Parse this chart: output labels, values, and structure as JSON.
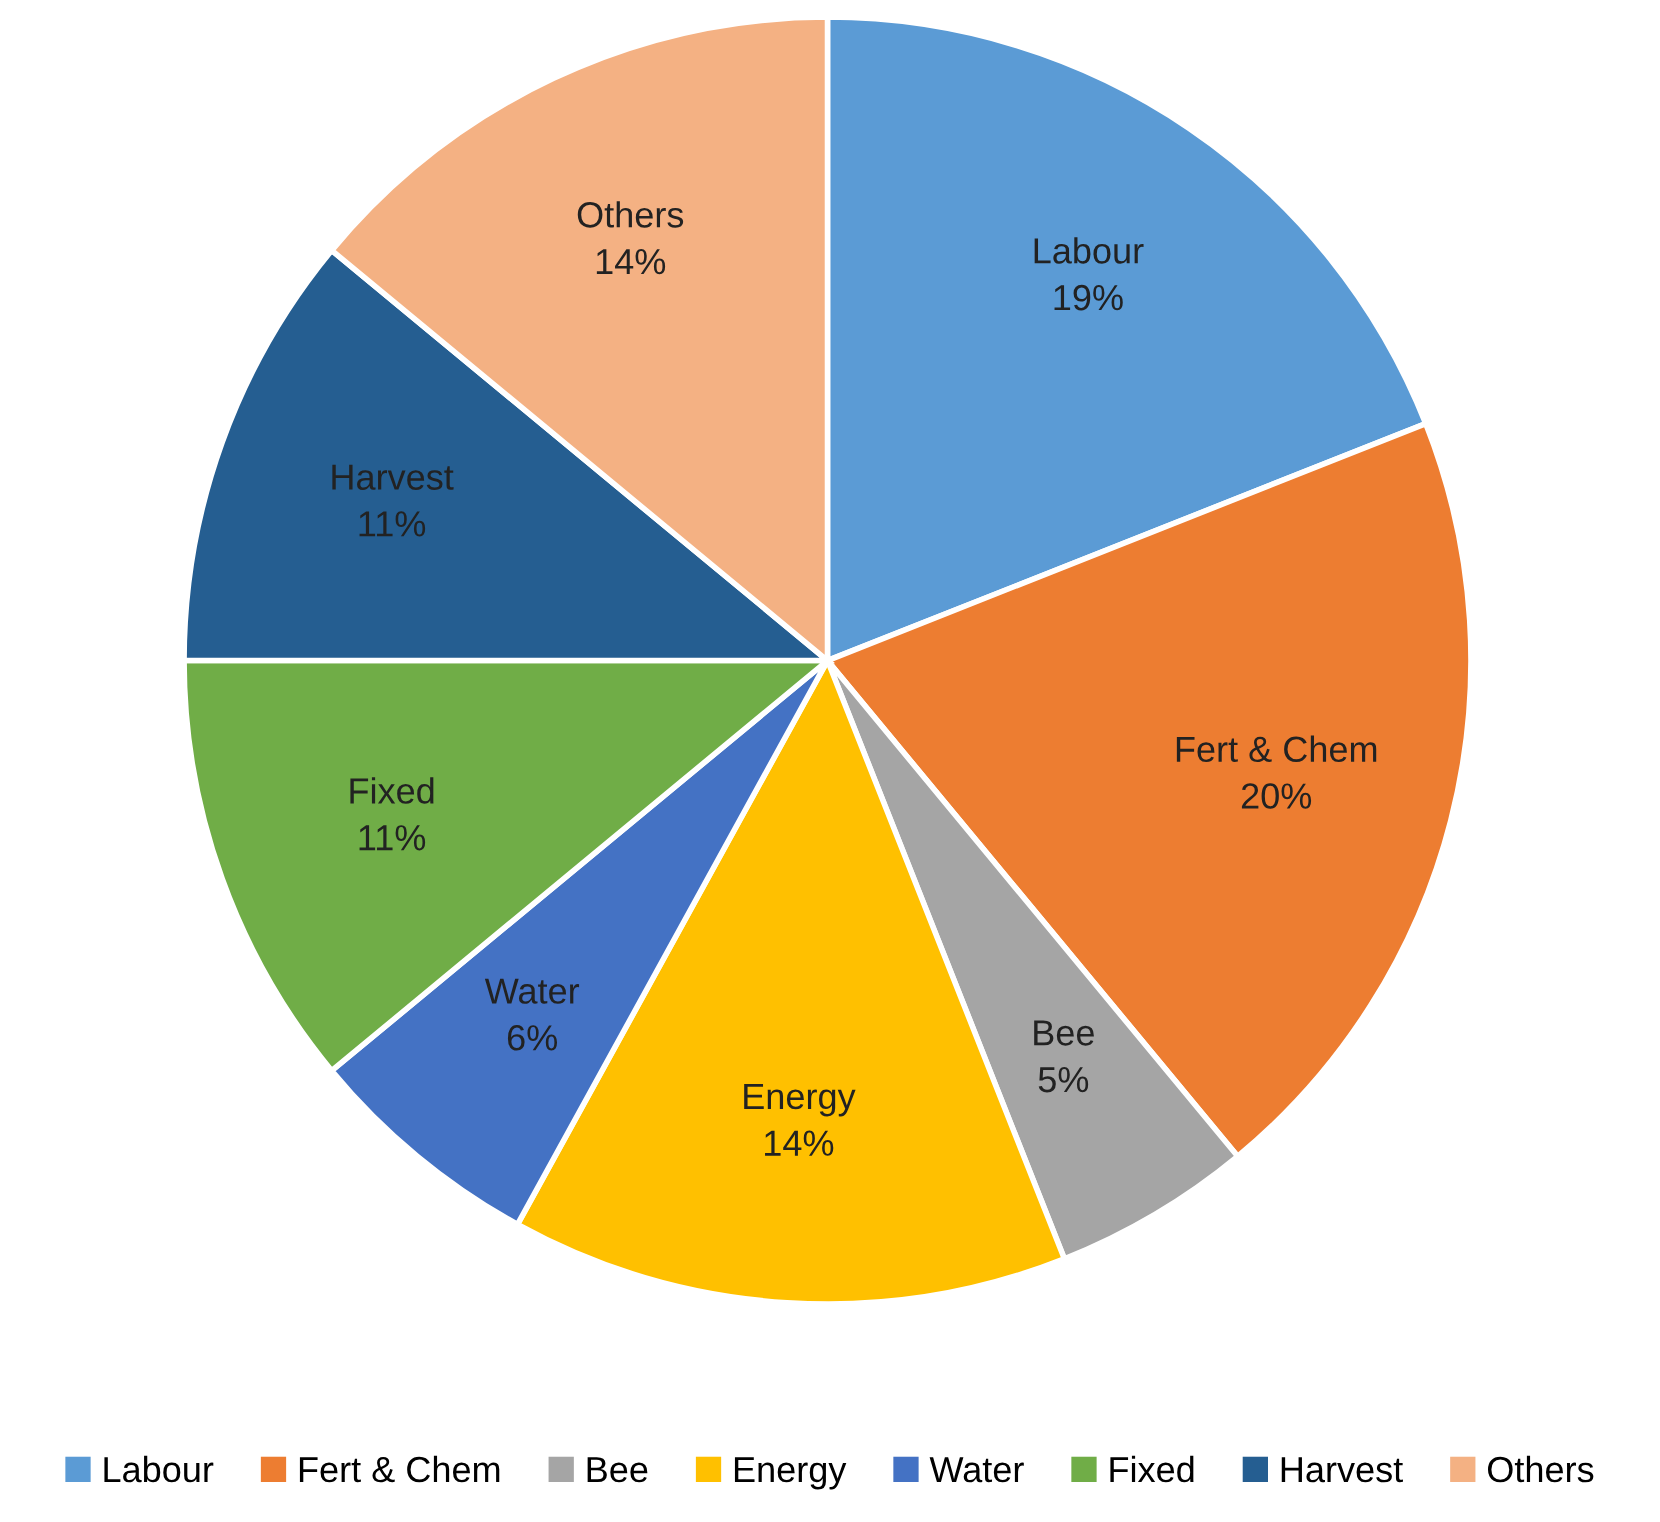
{
  "chart_data": {
    "type": "pie",
    "categories": [
      "Labour",
      "Fert & Chem",
      "Bee",
      "Energy",
      "Water",
      "Fixed",
      "Harvest",
      "Others"
    ],
    "values": [
      19,
      20,
      5,
      14,
      6,
      11,
      11,
      14
    ],
    "value_labels": [
      "19%",
      "20%",
      "5%",
      "14%",
      "6%",
      "11%",
      "11%",
      "14%"
    ],
    "colors": [
      "#5b9bd5",
      "#ed7d31",
      "#a5a5a5",
      "#ffc000",
      "#4472c4",
      "#70ad47",
      "#255e91",
      "#f4b183"
    ],
    "legend": "bottom"
  }
}
